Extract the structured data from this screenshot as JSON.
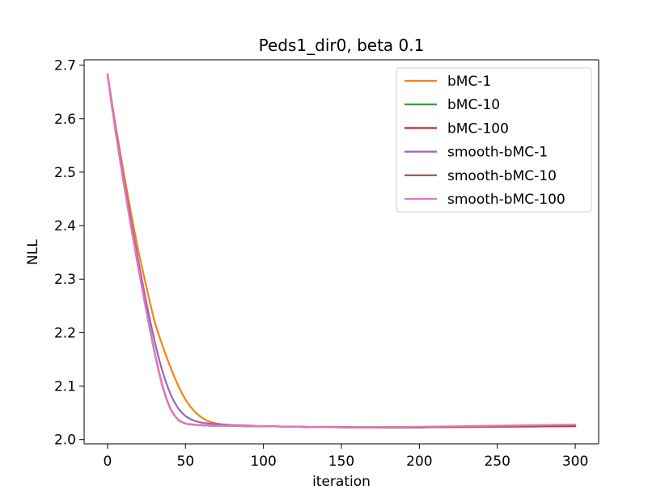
{
  "chart_data": {
    "type": "line",
    "title": "Peds1_dir0, beta 0.1",
    "xlabel": "iteration",
    "ylabel": "NLL",
    "xlim": [
      -15,
      315
    ],
    "ylim": [
      1.992,
      2.71
    ],
    "xticks": [
      0,
      50,
      100,
      150,
      200,
      250,
      300
    ],
    "yticks": [
      2.0,
      2.1,
      2.2,
      2.3,
      2.4,
      2.5,
      2.6,
      2.7
    ],
    "xtick_labels": [
      "0",
      "50",
      "100",
      "150",
      "200",
      "250",
      "300"
    ],
    "ytick_labels": [
      "2.0",
      "2.1",
      "2.2",
      "2.3",
      "2.4",
      "2.5",
      "2.6",
      "2.7"
    ],
    "grid": false,
    "legend_position": "top-right",
    "x": [
      0,
      5,
      10,
      15,
      20,
      25,
      30,
      35,
      40,
      45,
      50,
      55,
      60,
      65,
      70,
      75,
      80,
      90,
      100,
      120,
      150,
      200,
      250,
      300
    ],
    "series": [
      {
        "name": "bMC-1",
        "color": "#ff7f0e",
        "values": [
          2.683,
          2.59,
          2.505,
          2.425,
          2.35,
          2.285,
          2.223,
          2.178,
          2.138,
          2.103,
          2.075,
          2.055,
          2.042,
          2.034,
          2.03,
          2.028,
          2.027,
          2.026,
          2.025,
          2.024,
          2.023,
          2.023,
          2.024,
          2.025
        ]
      },
      {
        "name": "bMC-10",
        "color": "#2ca02c",
        "values": [
          2.683,
          2.58,
          2.487,
          2.4,
          2.318,
          2.24,
          2.166,
          2.103,
          2.06,
          2.038,
          2.03,
          2.028,
          2.027,
          2.026,
          2.026,
          2.026,
          2.026,
          2.025,
          2.025,
          2.024,
          2.023,
          2.023,
          2.025,
          2.027
        ]
      },
      {
        "name": "bMC-100",
        "color": "#d62728",
        "values": [
          2.683,
          2.58,
          2.487,
          2.4,
          2.318,
          2.24,
          2.166,
          2.103,
          2.06,
          2.038,
          2.03,
          2.028,
          2.027,
          2.026,
          2.026,
          2.026,
          2.026,
          2.025,
          2.025,
          2.024,
          2.023,
          2.023,
          2.024,
          2.025
        ]
      },
      {
        "name": "smooth-bMC-1",
        "color": "#9467bd",
        "values": [
          2.683,
          2.585,
          2.495,
          2.41,
          2.33,
          2.255,
          2.187,
          2.13,
          2.088,
          2.06,
          2.044,
          2.036,
          2.032,
          2.03,
          2.029,
          2.028,
          2.027,
          2.026,
          2.025,
          2.024,
          2.023,
          2.023,
          2.025,
          2.027
        ]
      },
      {
        "name": "smooth-bMC-10",
        "color": "#8c564b",
        "values": [
          2.683,
          2.58,
          2.487,
          2.4,
          2.318,
          2.24,
          2.166,
          2.103,
          2.06,
          2.038,
          2.03,
          2.028,
          2.027,
          2.026,
          2.026,
          2.026,
          2.026,
          2.025,
          2.025,
          2.024,
          2.023,
          2.023,
          2.025,
          2.026
        ]
      },
      {
        "name": "smooth-bMC-100",
        "color": "#e377c2",
        "values": [
          2.683,
          2.58,
          2.487,
          2.4,
          2.318,
          2.24,
          2.166,
          2.103,
          2.06,
          2.038,
          2.03,
          2.028,
          2.027,
          2.026,
          2.026,
          2.026,
          2.026,
          2.025,
          2.025,
          2.024,
          2.023,
          2.024,
          2.026,
          2.028
        ]
      }
    ]
  }
}
